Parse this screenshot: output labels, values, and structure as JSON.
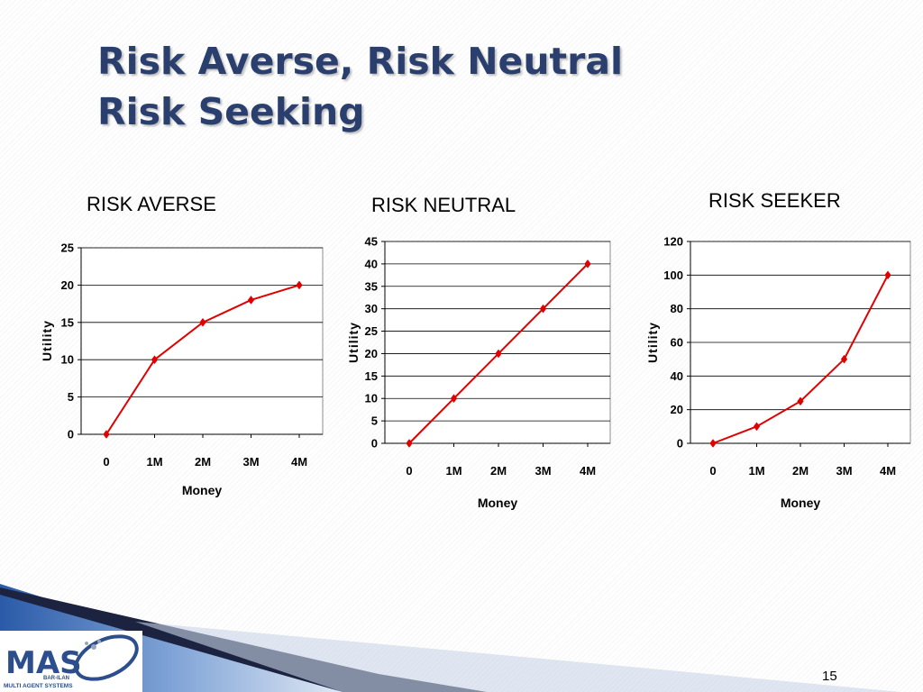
{
  "slide": {
    "title_line1": "Risk Averse, Risk Neutral",
    "title_line2": "Risk Seeking",
    "page_number": "15",
    "logo": {
      "text": "MAS",
      "sub1": "BAR-ILAN",
      "sub2": "MULTI AGENT SYSTEMS"
    }
  },
  "chart_data": [
    {
      "type": "line",
      "heading": "RISK AVERSE",
      "title": "",
      "xlabel": "Money",
      "ylabel": "Utility",
      "categories": [
        "0",
        "1M",
        "2M",
        "3M",
        "4M"
      ],
      "values": [
        0,
        10,
        15,
        18,
        20
      ],
      "ylim": [
        0,
        25
      ],
      "yticks": [
        0,
        5,
        10,
        15,
        20,
        25
      ],
      "grid": true,
      "color": "#e00000"
    },
    {
      "type": "line",
      "heading": "RISK NEUTRAL",
      "title": "",
      "xlabel": "Money",
      "ylabel": "Utility",
      "categories": [
        "0",
        "1M",
        "2M",
        "3M",
        "4M"
      ],
      "values": [
        0,
        10,
        20,
        30,
        40
      ],
      "ylim": [
        0,
        45
      ],
      "yticks": [
        0,
        5,
        10,
        15,
        20,
        25,
        30,
        35,
        40,
        45
      ],
      "grid": true,
      "color": "#e00000"
    },
    {
      "type": "line",
      "heading": "RISK SEEKER",
      "title": "",
      "xlabel": "Money",
      "ylabel": "Utility",
      "categories": [
        "0",
        "1M",
        "2M",
        "3M",
        "4M"
      ],
      "values": [
        0,
        10,
        25,
        50,
        100
      ],
      "ylim": [
        0,
        120
      ],
      "yticks": [
        0,
        20,
        40,
        60,
        80,
        100,
        120
      ],
      "grid": true,
      "color": "#e00000"
    }
  ]
}
